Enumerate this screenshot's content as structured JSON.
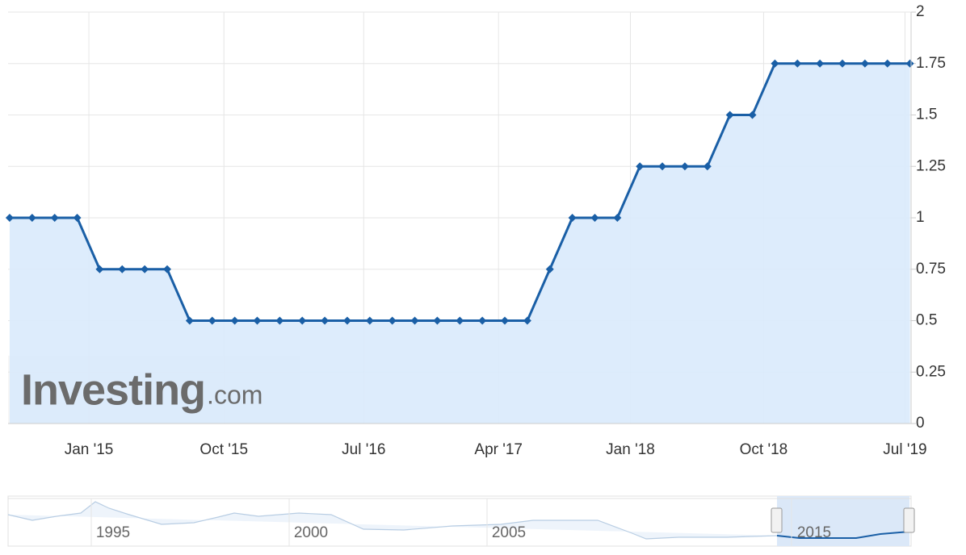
{
  "chart_data": {
    "type": "area",
    "x": [
      0,
      1,
      2,
      3,
      4,
      5,
      6,
      7,
      8,
      9,
      10,
      11,
      12,
      13,
      14,
      15,
      16,
      17,
      18,
      19,
      20,
      21,
      22,
      23,
      24,
      25,
      26,
      27,
      28,
      29,
      30,
      31,
      32,
      33,
      34,
      35,
      36,
      37,
      38,
      39,
      40
    ],
    "series": [
      {
        "color": "#1a5fa6",
        "values": [
          1,
          1,
          1,
          1,
          0.75,
          0.75,
          0.75,
          0.75,
          0.5,
          0.5,
          0.5,
          0.5,
          0.5,
          0.5,
          0.5,
          0.5,
          0.5,
          0.5,
          0.5,
          0.5,
          0.5,
          0.5,
          0.5,
          0.5,
          0.75,
          1,
          1,
          1,
          1.25,
          1.25,
          1.25,
          1.25,
          1.5,
          1.5,
          1.75,
          1.75,
          1.75,
          1.75,
          1.75,
          1.75,
          1.75
        ]
      }
    ],
    "xlim": [
      -0.07,
      40.05
    ],
    "xticks": [
      {
        "value": 3.52,
        "label": "Jan '15"
      },
      {
        "value": 9.52,
        "label": "Oct '15"
      },
      {
        "value": 15.73,
        "label": "Jul '16"
      },
      {
        "value": 21.72,
        "label": "Apr '17"
      },
      {
        "value": 27.58,
        "label": "Jan '18"
      },
      {
        "value": 33.5,
        "label": "Oct '18"
      },
      {
        "value": 39.78,
        "label": "Jul '19"
      }
    ],
    "ylim": [
      0,
      2
    ],
    "yticks": [
      0,
      0.25,
      0.5,
      0.75,
      1,
      1.25,
      1.5,
      1.75,
      2
    ],
    "grid": true,
    "fill_color": "#d9eafc",
    "watermark": [
      "Investing",
      ".com"
    ],
    "navigator": {
      "labels": [
        "1995",
        "2000",
        "2005",
        "2015"
      ]
    }
  }
}
